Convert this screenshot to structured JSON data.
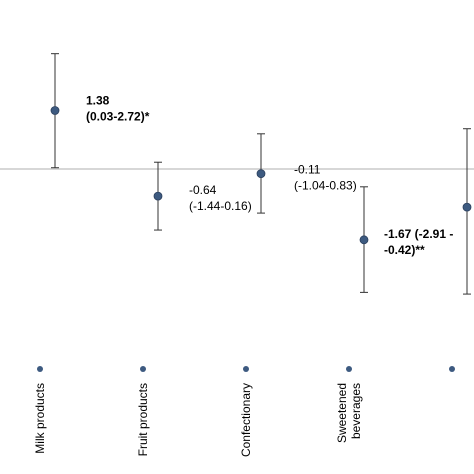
{
  "chart_data": {
    "type": "scatter",
    "title": "",
    "xlabel": "",
    "ylabel": "",
    "ylim": [
      -2.95,
      3.0
    ],
    "reference_line_y": 0,
    "grid": false,
    "legend": "none",
    "colors": {
      "marker": "#3d5a80",
      "marker_edge": "#2b3f5c",
      "errorbar": "#333333",
      "zero_line": "#bfbfbf"
    },
    "categories": [
      [
        "Milk products"
      ],
      [
        "Fruit products"
      ],
      [
        "Confectionary"
      ],
      [
        "Sweetened",
        "beverages"
      ],
      [
        ""
      ]
    ],
    "points": [
      {
        "value": 1.38,
        "ci_low": 0.03,
        "ci_high": 2.72,
        "label_lines": [
          "1.38",
          "(0.03-2.72)*"
        ],
        "bold": true
      },
      {
        "value": -0.64,
        "ci_low": -1.44,
        "ci_high": 0.16,
        "label_lines": [
          "-0.64",
          "(-1.44-0.16)"
        ],
        "bold": false
      },
      {
        "value": -0.11,
        "ci_low": -1.04,
        "ci_high": 0.83,
        "label_lines": [
          "-0.11",
          "(-1.04-0.83)"
        ],
        "bold": false
      },
      {
        "value": -1.67,
        "ci_low": -2.91,
        "ci_high": -0.42,
        "label_lines": [
          "-1.67 (-2.91 -",
          "-0.42)**"
        ],
        "bold": true
      },
      {
        "value": -0.9,
        "ci_low": -2.95,
        "ci_high": 0.95,
        "label_lines": [],
        "bold": false
      }
    ]
  }
}
